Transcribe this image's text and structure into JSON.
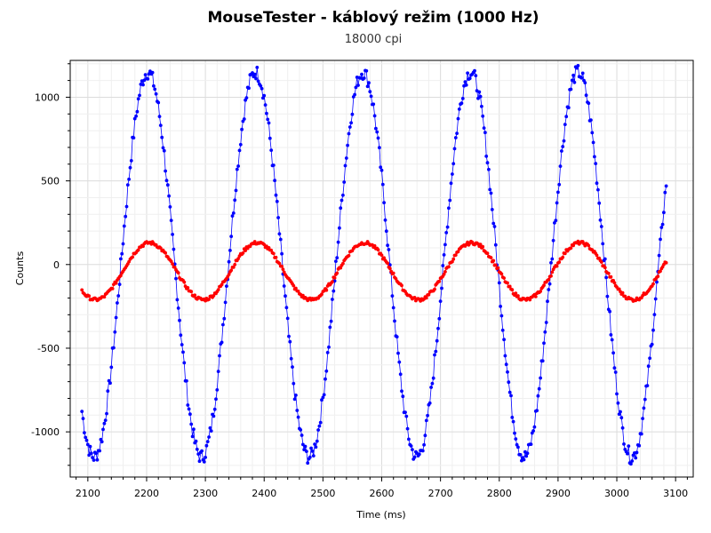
{
  "chart_data": {
    "type": "scatter",
    "title": "MouseTester - káblový režim (1000 Hz)",
    "subtitle": "18000 cpi",
    "xlabel": "Time (ms)",
    "ylabel": "Counts",
    "xlim": [
      2070,
      3130
    ],
    "ylim": [
      -1270,
      1220
    ],
    "x_ticks": [
      2100,
      2200,
      2300,
      2400,
      2500,
      2600,
      2700,
      2800,
      2900,
      3000,
      3100
    ],
    "y_ticks": [
      -1000,
      -500,
      0,
      500,
      1000
    ],
    "grid": true,
    "series": [
      {
        "color": "#0000ff",
        "style": "line+markers",
        "x_start": 2090,
        "x_end": 3085,
        "amplitude": 1150,
        "period": 183,
        "peaks_at": [
          2202,
          2385,
          2568,
          2751,
          2934
        ]
      },
      {
        "color": "#ff0000",
        "style": "line+markers",
        "x_start": 2090,
        "x_end": 3085,
        "amplitude": 170,
        "period": 183,
        "offset": -40,
        "peaks_at": [
          2205,
          2388,
          2571,
          2754,
          2937
        ]
      }
    ]
  }
}
